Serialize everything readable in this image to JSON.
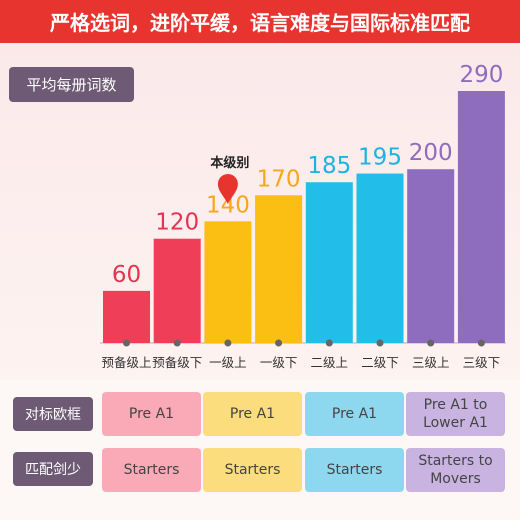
{
  "banner": {
    "title": "严格选词，进阶平缓，语言难度与国际标准匹配"
  },
  "badge": {
    "avg_label": "平均每册词数"
  },
  "marker": {
    "label": "本级别"
  },
  "colors": {
    "red": "#ee3e58",
    "yellow": "#fbbe12",
    "blue": "#22bde8",
    "purple": "#8e6dbf"
  },
  "chart_data": {
    "type": "bar",
    "categories": [
      "预备级上",
      "预备级下",
      "一级上",
      "一级下",
      "二级上",
      "二级下",
      "三级上",
      "三级下"
    ],
    "values": [
      60,
      120,
      140,
      170,
      185,
      195,
      200,
      290
    ],
    "value_labels": [
      "60",
      "120",
      "140",
      "170",
      "185",
      "195",
      "200",
      "290"
    ],
    "bar_colors": [
      "#ee3e58",
      "#ee3e58",
      "#fbbe12",
      "#fbbe12",
      "#22bde8",
      "#22bde8",
      "#8e6dbf",
      "#8e6dbf"
    ],
    "label_colors": [
      "#e5344f",
      "#e5344f",
      "#f5a81a",
      "#f5a81a",
      "#1eb3e0",
      "#1eb3e0",
      "#8e6dbf",
      "#8e6dbf"
    ],
    "highlighted_category": "一级上",
    "ylim": [
      0,
      290
    ]
  },
  "table": {
    "rows": [
      {
        "label": "对标欧框",
        "cells": [
          "Pre A1",
          "Pre A1",
          "Pre A1",
          "Pre A1 to\nLower A1"
        ]
      },
      {
        "label": "匹配剑少",
        "cells": [
          "Starters",
          "Starters",
          "Starters",
          "Starters to\nMovers"
        ]
      }
    ],
    "cell_colors": [
      "#f9aab6",
      "#fcdd7e",
      "#8dd7ef",
      "#c9b3e1"
    ]
  }
}
